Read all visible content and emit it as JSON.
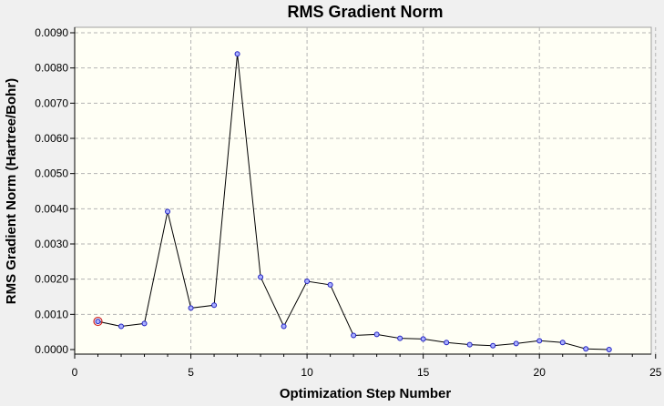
{
  "chart_data": {
    "type": "line",
    "title": "RMS Gradient Norm",
    "xlabel": "Optimization Step Number",
    "ylabel": "RMS Gradient Norm (Hartree/Bohr)",
    "xlim": [
      0,
      25
    ],
    "ylim": [
      0,
      0.009
    ],
    "x_ticks": [
      "0",
      "5",
      "10",
      "15",
      "20",
      "25"
    ],
    "y_ticks": [
      "0.0000",
      "0.0010",
      "0.0020",
      "0.0030",
      "0.0040",
      "0.0050",
      "0.0060",
      "0.0070",
      "0.0080",
      "0.0090"
    ],
    "grid": true,
    "highlighted_point": 1,
    "x": [
      1,
      2,
      3,
      4,
      5,
      6,
      7,
      8,
      9,
      10,
      11,
      12,
      13,
      14,
      15,
      16,
      17,
      18,
      19,
      20,
      21,
      22,
      23
    ],
    "y": [
      0.0008,
      0.00066,
      0.00074,
      0.00392,
      0.00118,
      0.00126,
      0.0084,
      0.00206,
      0.00066,
      0.00194,
      0.00184,
      0.0004,
      0.00043,
      0.00032,
      0.0003,
      0.0002,
      0.00014,
      0.00011,
      0.00017,
      0.00025,
      0.0002,
      2e-05,
      0.0
    ]
  },
  "colors": {
    "plot_background": "#fffff5",
    "window_background": "#f0f0f0",
    "point_fill": "#aab0ff",
    "point_stroke": "#2020c0",
    "highlight": "#d02020"
  }
}
